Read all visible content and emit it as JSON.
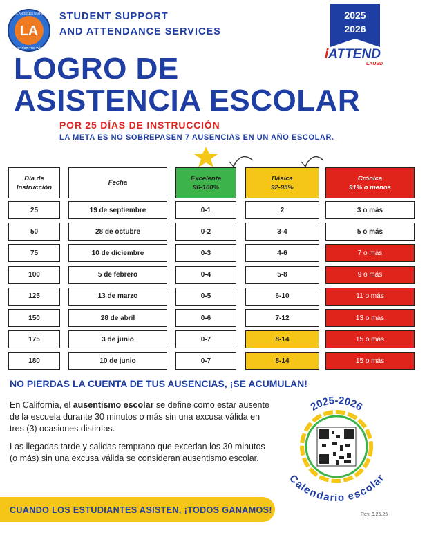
{
  "header": {
    "org_line1": "STUDENT SUPPORT",
    "org_line2": "AND ATTENDANCE SERVICES",
    "year_top": "2025",
    "year_bottom": "2026",
    "logo_mark": "i",
    "logo_text": "ATTEND",
    "logo_sub": "LAUSD",
    "seal_top": "LOS ANGELES UNIFIED",
    "seal_bottom": "READY FOR THE WORLD"
  },
  "title": [
    "LOGRO DE",
    "ASISTENCIA ESCOLAR"
  ],
  "subtitle": "POR 25 DÍAS DE INSTRUCCIÓN",
  "goal": "LA META ES NO SOBREPASEN 7 AUSENCIAS EN UN AÑO ESCOLAR.",
  "table": {
    "columns": [
      [
        "Día de",
        "Instrucción"
      ],
      [
        "Fecha"
      ],
      [
        "Excelente",
        "96-100%"
      ],
      [
        "Básica",
        "92-95%"
      ],
      [
        "Crónica",
        "91% o menos"
      ]
    ],
    "header_fills": [
      "#ffffff",
      "#ffffff",
      "#3cb44a",
      "#f5c518",
      "#e0241c"
    ],
    "rows": [
      [
        "25",
        "19 de septiembre",
        "0-1",
        "2",
        "3 o más"
      ],
      [
        "50",
        "28 de octubre",
        "0-2",
        "3-4",
        "5 o más"
      ],
      [
        "75",
        "10 de diciembre",
        "0-3",
        "4-6",
        "7 o más"
      ],
      [
        "100",
        "5 de febrero",
        "0-4",
        "5-8",
        "9 o más"
      ],
      [
        "125",
        "13 de marzo",
        "0-5",
        "6-10",
        "11 o más"
      ],
      [
        "150",
        "28 de abril",
        "0-6",
        "7-12",
        "13 o más"
      ],
      [
        "175",
        "3 de junio",
        "0-7",
        "8-14",
        "15 o más"
      ],
      [
        "180",
        "10 de junio",
        "0-7",
        "8-14",
        "15 o más"
      ]
    ],
    "fills": [
      [
        "#ffffff",
        "#ffffff",
        "#ffffff",
        "#ffffff",
        "#ffffff"
      ],
      [
        "#ffffff",
        "#ffffff",
        "#ffffff",
        "#ffffff",
        "#ffffff"
      ],
      [
        "#ffffff",
        "#ffffff",
        "#ffffff",
        "#ffffff",
        "#e0241c"
      ],
      [
        "#ffffff",
        "#ffffff",
        "#ffffff",
        "#ffffff",
        "#e0241c"
      ],
      [
        "#ffffff",
        "#ffffff",
        "#ffffff",
        "#ffffff",
        "#e0241c"
      ],
      [
        "#ffffff",
        "#ffffff",
        "#ffffff",
        "#ffffff",
        "#e0241c"
      ],
      [
        "#ffffff",
        "#ffffff",
        "#ffffff",
        "#f5c518",
        "#e0241c"
      ],
      [
        "#ffffff",
        "#ffffff",
        "#ffffff",
        "#f5c518",
        "#e0241c"
      ]
    ]
  },
  "warning": "NO PIERDAS LA CUENTA DE TUS AUSENCIAS, ¡SE ACUMULAN!",
  "paragraph1": [
    "En California, el ",
    "ausentismo escolar",
    " se define como estar ausente de la escuela durante 30 minutos o más sin una excusa válida en tres (3) ocasiones distintas."
  ],
  "paragraph2": "Las llegadas tarde y salidas temprano que excedan los 30 minutos (o más) sin una excusa válida se consideran ausentismo escolar.",
  "badge": {
    "year": "2025-2026",
    "label": "Calendario escolar"
  },
  "footer": {
    "banner": "CUANDO LOS ESTUDIANTES ASISTEN, ¡TODOS GANAMOS!",
    "revision": "Rev. 6.25.25"
  }
}
